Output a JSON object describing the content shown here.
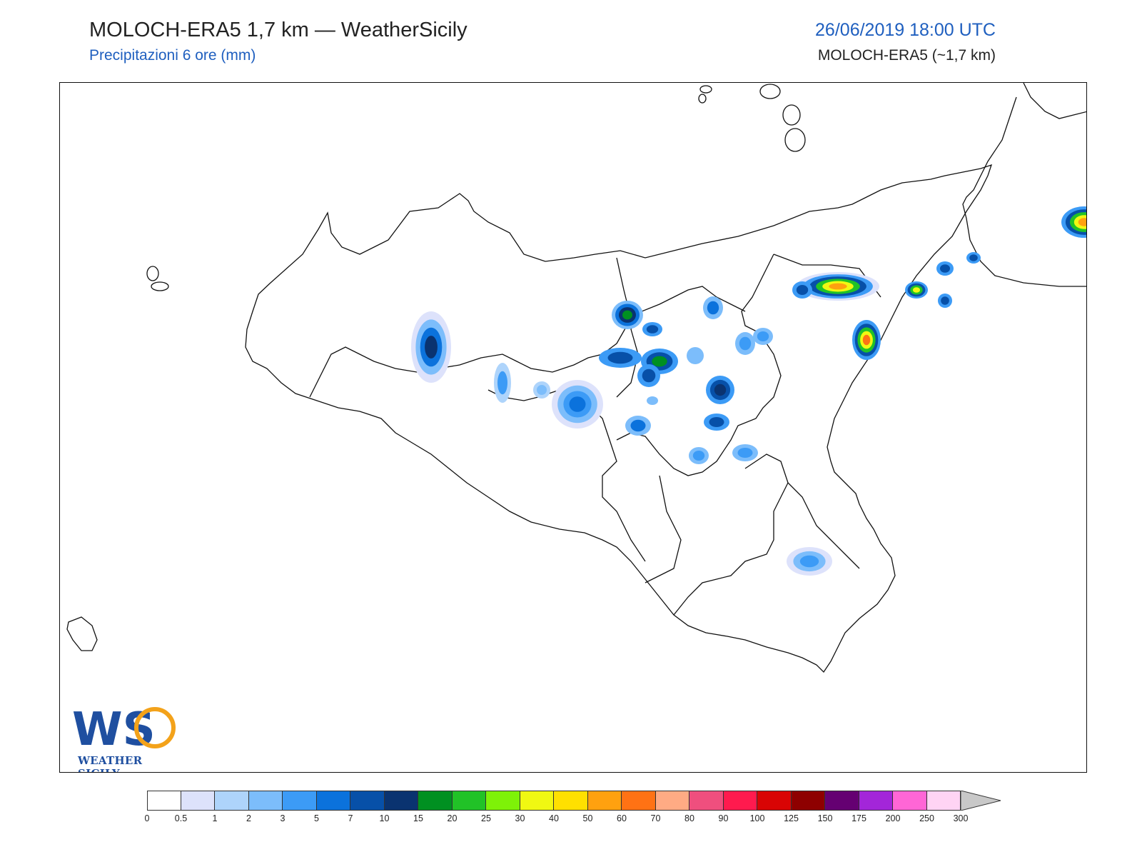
{
  "header": {
    "title": "MOLOCH-ERA5 1,7 km — WeatherSicily",
    "subtitle": "Precipitazioni 6 ore (mm)",
    "datetime": "26/06/2019 18:00 UTC",
    "model_res": "MOLOCH-ERA5 (~1,7 km)"
  },
  "logo": {
    "monogram": "WS",
    "name": "WEATHER SICILY"
  },
  "colorbar": {
    "labels": [
      "0",
      "0.5",
      "1",
      "2",
      "3",
      "5",
      "7",
      "10",
      "15",
      "20",
      "25",
      "30",
      "40",
      "50",
      "60",
      "70",
      "80",
      "90",
      "100",
      "125",
      "150",
      "175",
      "200",
      "250",
      "300"
    ],
    "colors": [
      "#ffffff",
      "#dde2fb",
      "#aed4fb",
      "#7cbdfb",
      "#3c9bf6",
      "#0b72dc",
      "#0750a8",
      "#0a3370",
      "#009021",
      "#21c227",
      "#7ef208",
      "#f0f812",
      "#ffe000",
      "#ffa10f",
      "#ff7214",
      "#ffab84",
      "#ef4f7e",
      "#ff1a4e",
      "#d90404",
      "#8e0000",
      "#650072",
      "#a326d9",
      "#ff66d6",
      "#ffd4f4"
    ],
    "extend_color": "#c8c8c8"
  },
  "precip_colors": {
    "lt1": "#dde2fb",
    "c1": "#aed4fb",
    "c2": "#7cbdfb",
    "c3": "#3c9bf6",
    "c5": "#0b72dc",
    "c7": "#0750a8",
    "c10": "#0a3370",
    "c15": "#009021",
    "c20": "#21c227",
    "c30": "#f0f812",
    "c50": "#ffa10f",
    "c60": "#ff7214"
  }
}
